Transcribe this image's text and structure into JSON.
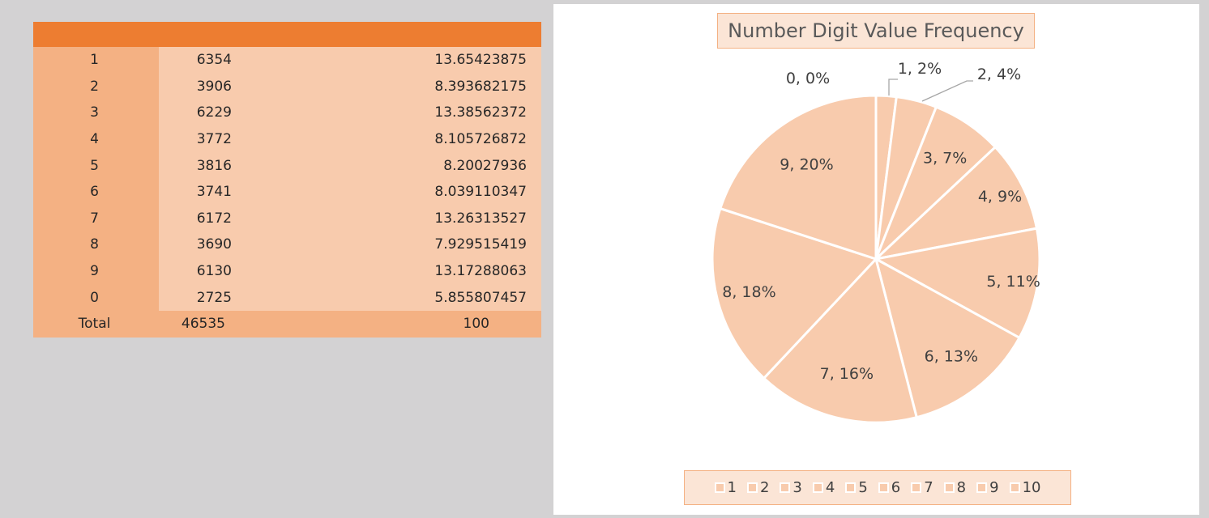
{
  "table": {
    "rows": [
      {
        "digit": "1",
        "count": "6354",
        "percent": "13.65423875"
      },
      {
        "digit": "2",
        "count": "3906",
        "percent": "8.393682175"
      },
      {
        "digit": "3",
        "count": "6229",
        "percent": "13.38562372"
      },
      {
        "digit": "4",
        "count": "3772",
        "percent": "8.105726872"
      },
      {
        "digit": "5",
        "count": "3816",
        "percent": "8.20027936"
      },
      {
        "digit": "6",
        "count": "3741",
        "percent": "8.039110347"
      },
      {
        "digit": "7",
        "count": "6172",
        "percent": "13.26313527"
      },
      {
        "digit": "8",
        "count": "3690",
        "percent": "7.929515419"
      },
      {
        "digit": "9",
        "count": "6130",
        "percent": "13.17288063"
      },
      {
        "digit": "0",
        "count": "2725",
        "percent": "5.855807457"
      }
    ],
    "total": {
      "label": "Total",
      "count": "46535",
      "percent": "100"
    }
  },
  "colors": {
    "header": "#ed7d31",
    "category_column": "#f4b183",
    "value_cells": "#f8cbad",
    "slice_fill": "#f8cbad",
    "slice_border": "#ffffff",
    "title_fill": "#fbe5d6",
    "background": "#d3d2d3"
  },
  "chart_data": {
    "type": "pie",
    "title": "Number Digit Value Frequency",
    "categories": [
      "1",
      "2",
      "3",
      "4",
      "5",
      "6",
      "7",
      "8",
      "9",
      "10"
    ],
    "values": [
      0,
      2,
      4,
      7,
      9,
      11,
      13,
      16,
      18,
      20
    ],
    "data_labels": [
      "0, 0%",
      "1, 2%",
      "2, 4%",
      "3, 7%",
      "4, 9%",
      "5, 11%",
      "6, 13%",
      "7, 16%",
      "8, 18%",
      "9, 20%"
    ],
    "legend": [
      "1",
      "2",
      "3",
      "4",
      "5",
      "6",
      "7",
      "8",
      "9",
      "10"
    ],
    "legend_position": "bottom"
  }
}
